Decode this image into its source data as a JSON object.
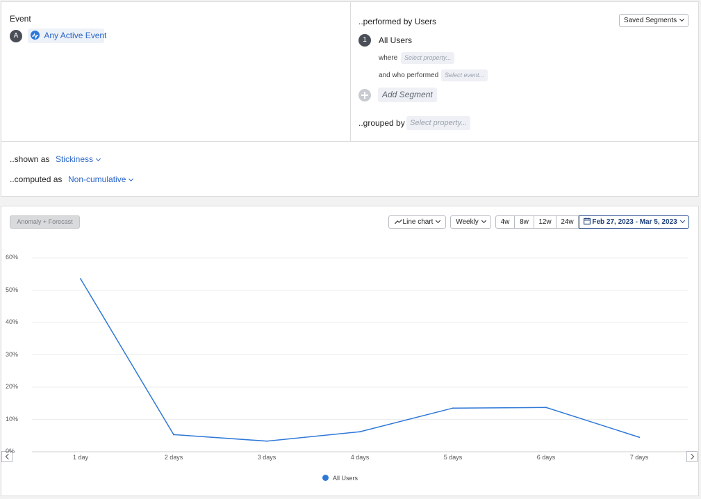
{
  "event_section": {
    "title": "Event",
    "badge": "A",
    "event_label": "Any Active Event"
  },
  "users_section": {
    "title": "..performed by Users",
    "saved_segments": "Saved Segments",
    "segment_badge": "1",
    "segment_name": "All Users",
    "where_label": "where",
    "where_placeholder": "Select property...",
    "who_label": "and who performed",
    "who_placeholder": "Select event...",
    "add_segment": "Add Segment",
    "grouped_label": "..grouped by",
    "grouped_placeholder": "Select property..."
  },
  "options": {
    "shown_label": "..shown as",
    "shown_value": "Stickiness",
    "computed_label": "..computed as",
    "computed_value": "Non-cumulative"
  },
  "toolbar": {
    "anomaly": "Anomaly + Forecast",
    "chart_type": "Line chart",
    "interval": "Weekly",
    "ranges": [
      "4w",
      "8w",
      "12w",
      "24w"
    ],
    "date_range": "Feb 27, 2023 - Mar 5, 2023"
  },
  "colors": {
    "accent": "#2a66c9",
    "series": "#2f78d8"
  },
  "chart_data": {
    "type": "line",
    "categories": [
      "1 day",
      "2 days",
      "3 days",
      "4 days",
      "5 days",
      "6 days",
      "7 days"
    ],
    "series": [
      {
        "name": "All Users",
        "values": [
          53.5,
          5.3,
          3.3,
          6.2,
          13.5,
          13.7,
          4.5
        ]
      }
    ],
    "yticks": [
      "0%",
      "10%",
      "20%",
      "30%",
      "40%",
      "50%",
      "60%"
    ],
    "ylim": [
      0,
      60
    ],
    "grid": true,
    "legend": "bottom-center"
  }
}
